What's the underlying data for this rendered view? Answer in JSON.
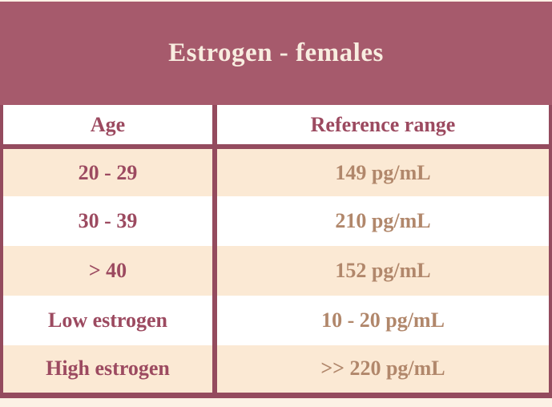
{
  "chart_data": {
    "type": "table",
    "title": "Estrogen - females",
    "columns": [
      "Age",
      "Reference range"
    ],
    "rows": [
      [
        "20 - 29",
        "149 pg/mL"
      ],
      [
        "30 - 39",
        "210 pg/mL"
      ],
      [
        "> 40",
        "152 pg/mL"
      ],
      [
        "Low estrogen",
        "10 - 20 pg/mL"
      ],
      [
        "High estrogen",
        ">> 220 pg/mL"
      ]
    ]
  },
  "colors": {
    "band_bg": "#A65A6C",
    "border": "#944B5E",
    "header_text": "#9C4A60",
    "age_text": "#9C4A60",
    "range_text": "#B1876B",
    "row_peach": "#FBE9D4",
    "row_white": "#FFFFFF",
    "title_text": "#F8EDE0",
    "page_bg": "#FCF1E5"
  }
}
